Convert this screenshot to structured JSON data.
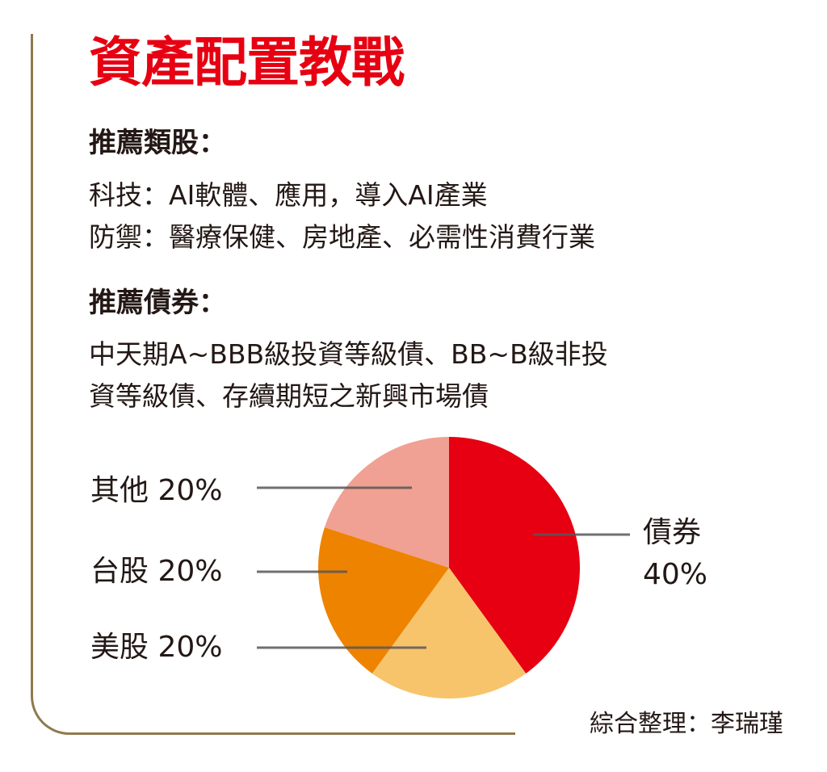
{
  "title": "資產配置教戰",
  "sections": [
    {
      "heading": "推薦類股：",
      "lines": [
        "科技：AI軟體、應用，導入AI產業",
        "防禦：醫療保健、房地產、必需性消費行業"
      ]
    },
    {
      "heading": "推薦債券：",
      "lines": [
        "中天期A~BBB級投資等級債、BB~B級非投",
        "資等級債、存續期短之新興市場債"
      ]
    }
  ],
  "chart_labels": {
    "bonds_name": "債券",
    "bonds_pct": "40%",
    "other": "其他 20%",
    "tw": "台股 20%",
    "us": "美股 20%"
  },
  "credit": "綜合整理：李瑞瑾",
  "colors": {
    "title": "#e60012",
    "bonds": "#e60012",
    "us_stocks": "#f7c46c",
    "tw_stocks": "#ee8300",
    "other": "#f0a193",
    "frame": "#8f7a4e",
    "leader_line": "#595757"
  },
  "chart_data": {
    "type": "pie",
    "title": "資產配置教戰",
    "categories": [
      "債券",
      "美股",
      "台股",
      "其他"
    ],
    "values": [
      40,
      20,
      20,
      20
    ],
    "unit": "%",
    "start_angle_deg": 0,
    "direction": "clockwise",
    "colors": [
      "#e60012",
      "#f7c46c",
      "#ee8300",
      "#f0a193"
    ],
    "labels": [
      "債券 40%",
      "美股 20%",
      "台股 20%",
      "其他 20%"
    ],
    "legend": "none (leader-line labels)"
  }
}
